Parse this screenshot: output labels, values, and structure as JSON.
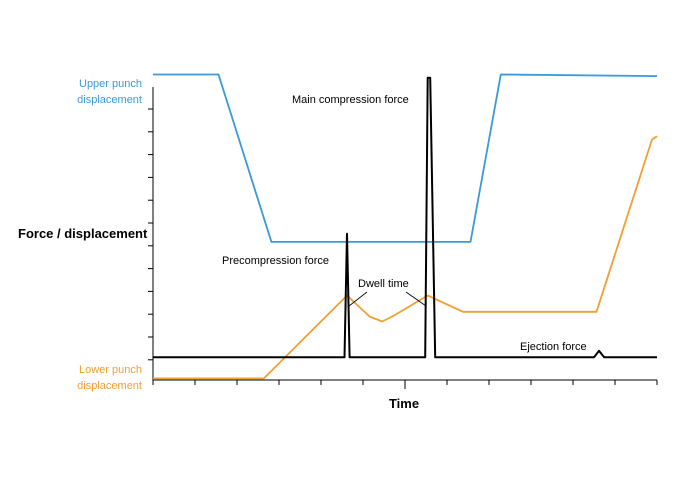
{
  "chart_data": {
    "type": "line",
    "xlabel": "Time",
    "ylabel": "Force / displacement",
    "xlim": [
      0,
      100
    ],
    "ylim": [
      0,
      100
    ],
    "grid": false,
    "series": [
      {
        "name": "Upper punch displacement",
        "color": "#3a9ad9",
        "x": [
          0,
          13,
          23.5,
          63,
          69,
          100
        ],
        "y": [
          94,
          94,
          42.5,
          42.5,
          94,
          93.5
        ]
      },
      {
        "name": "Lower punch displacement",
        "color": "#f0a030",
        "x": [
          0,
          22,
          38.5,
          43,
          45.5,
          48,
          54.5,
          61.5,
          88,
          99,
          100
        ],
        "y": [
          0.5,
          0.5,
          26,
          19.5,
          18,
          20,
          26,
          21,
          21,
          74,
          75
        ]
      },
      {
        "name": "Force",
        "color": "#000000",
        "x": [
          0,
          37.5,
          38,
          38.5,
          39,
          53,
          54,
          54.5,
          55,
          56,
          87.5,
          88.5,
          89.5,
          100
        ],
        "y": [
          7,
          7,
          7,
          45,
          7,
          7,
          7,
          93,
          93,
          7,
          7,
          9,
          7,
          7
        ]
      }
    ],
    "annotations": [
      "Main compression force",
      "Precompression force",
      "Dwell time",
      "Ejection force"
    ],
    "line_labels": {
      "upper": [
        "Upper punch",
        "displacement"
      ],
      "lower": [
        "Lower punch",
        "displacement"
      ]
    }
  }
}
